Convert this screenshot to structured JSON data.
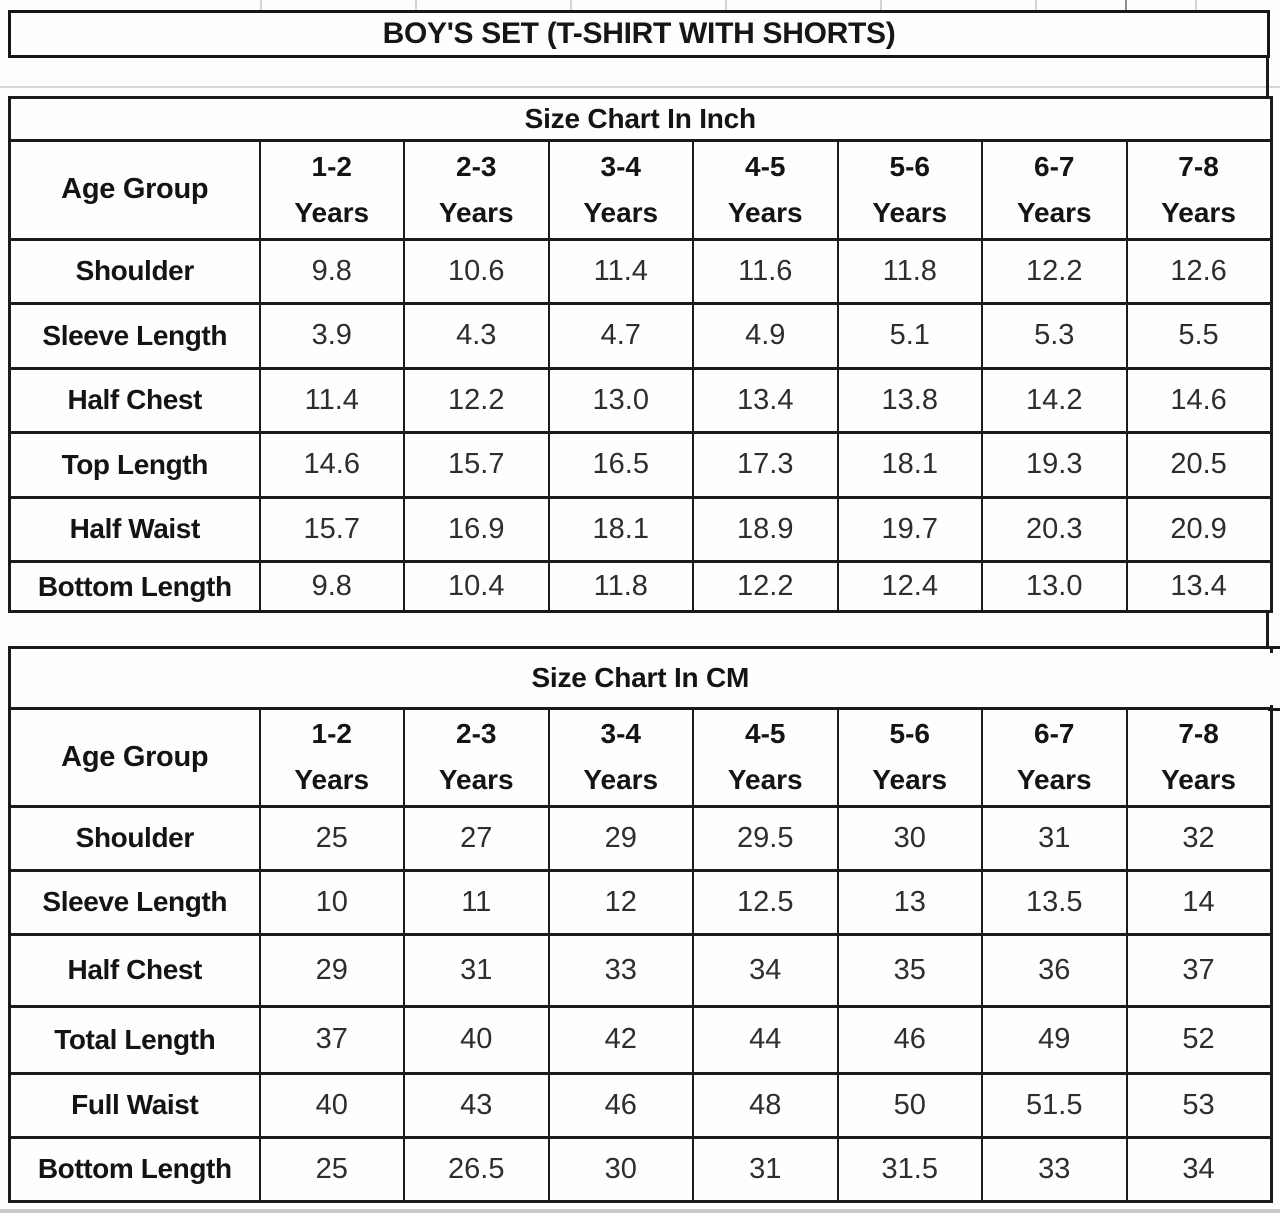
{
  "page_title": "BOY'S SET (T-SHIRT WITH SHORTS)",
  "colors": {
    "border": "#1b1b1b",
    "text": "#141414",
    "value_text": "#2e2e2e",
    "faint_grid": "#d7d7d7"
  },
  "tables": [
    {
      "title": "Size Chart In Inch",
      "corner_label": "Age Group",
      "age_groups": [
        {
          "range": "1-2",
          "suffix": "Years"
        },
        {
          "range": "2-3",
          "suffix": "Years"
        },
        {
          "range": "3-4",
          "suffix": "Years"
        },
        {
          "range": "4-5",
          "suffix": "Years"
        },
        {
          "range": "5-6",
          "suffix": "Years"
        },
        {
          "range": "6-7",
          "suffix": "Years"
        },
        {
          "range": "7-8",
          "suffix": "Years"
        }
      ],
      "rows": [
        {
          "label": "Shoulder",
          "values": [
            "9.8",
            "10.6",
            "11.4",
            "11.6",
            "11.8",
            "12.2",
            "12.6"
          ]
        },
        {
          "label": "Sleeve Length",
          "values": [
            "3.9",
            "4.3",
            "4.7",
            "4.9",
            "5.1",
            "5.3",
            "5.5"
          ]
        },
        {
          "label": "Half Chest",
          "values": [
            "11.4",
            "12.2",
            "13.0",
            "13.4",
            "13.8",
            "14.2",
            "14.6"
          ]
        },
        {
          "label": "Top Length",
          "values": [
            "14.6",
            "15.7",
            "16.5",
            "17.3",
            "18.1",
            "19.3",
            "20.5"
          ]
        },
        {
          "label": "Half Waist",
          "values": [
            "15.7",
            "16.9",
            "18.1",
            "18.9",
            "19.7",
            "20.3",
            "20.9"
          ]
        },
        {
          "label": "Bottom Length",
          "values": [
            "9.8",
            "10.4",
            "11.8",
            "12.2",
            "12.4",
            "13.0",
            "13.4"
          ]
        }
      ]
    },
    {
      "title": "Size Chart In CM",
      "corner_label": "Age Group",
      "age_groups": [
        {
          "range": "1-2",
          "suffix": "Years"
        },
        {
          "range": "2-3",
          "suffix": "Years"
        },
        {
          "range": "3-4",
          "suffix": "Years"
        },
        {
          "range": "4-5",
          "suffix": "Years"
        },
        {
          "range": "5-6",
          "suffix": "Years"
        },
        {
          "range": "6-7",
          "suffix": "Years"
        },
        {
          "range": "7-8",
          "suffix": "Years"
        }
      ],
      "rows": [
        {
          "label": "Shoulder",
          "values": [
            "25",
            "27",
            "29",
            "29.5",
            "30",
            "31",
            "32"
          ]
        },
        {
          "label": "Sleeve Length",
          "values": [
            "10",
            "11",
            "12",
            "12.5",
            "13",
            "13.5",
            "14"
          ]
        },
        {
          "label": "Half Chest",
          "values": [
            "29",
            "31",
            "33",
            "34",
            "35",
            "36",
            "37"
          ]
        },
        {
          "label": "Total Length",
          "values": [
            "37",
            "40",
            "42",
            "44",
            "46",
            "49",
            "52"
          ]
        },
        {
          "label": "Full Waist",
          "values": [
            "40",
            "43",
            "46",
            "48",
            "50",
            "51.5",
            "53"
          ]
        },
        {
          "label": "Bottom Length",
          "values": [
            "25",
            "26.5",
            "30",
            "31",
            "31.5",
            "33",
            "34"
          ]
        }
      ]
    }
  ]
}
